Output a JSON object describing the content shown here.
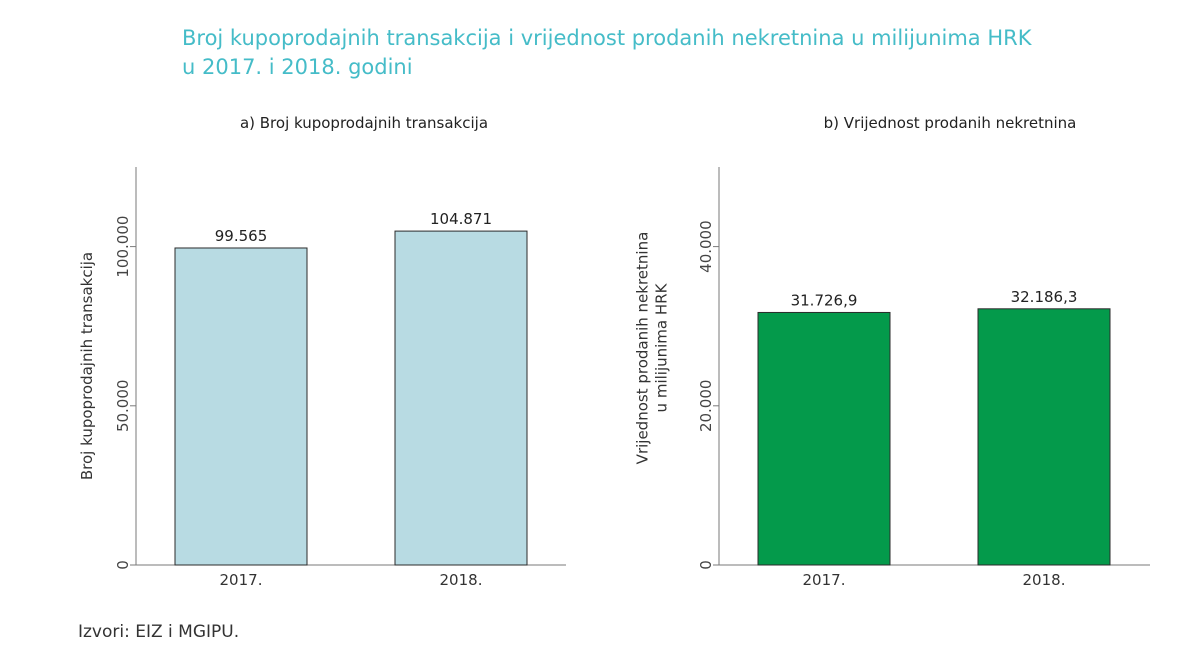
{
  "title_line1": "Broj kupoprodajnih transakcija i vrijednost prodanih nekretnina u milijunima HRK",
  "title_line2": "u 2017. i 2018. godini",
  "title_color": "#45bcc8",
  "source": "Izvori: EIZ i MGIPU.",
  "chart_data": [
    {
      "type": "bar",
      "title": "a) Broj kupoprodajnih transakcija",
      "categories": [
        "2017.",
        "2018."
      ],
      "values": [
        99565,
        104871
      ],
      "value_labels": [
        "99.565",
        "104.871"
      ],
      "ylabel": "Broj kupoprodajnih transakcija",
      "ylim": [
        0,
        125000
      ],
      "yticks": [
        0,
        50000,
        100000
      ],
      "ytick_labels": [
        "0",
        "50.000",
        "100.000"
      ],
      "bar_color": "#b8dbe3",
      "grid": false
    },
    {
      "type": "bar",
      "title": "b) Vrijednost prodanih nekretnina",
      "categories": [
        "2017.",
        "2018."
      ],
      "values": [
        31726.9,
        32186.3
      ],
      "value_labels": [
        "31.726,9",
        "32.186,3"
      ],
      "ylabel": "Vrijednost prodanih nekretnina u milijunima HRK",
      "ylabel_lines": [
        "Vrijednost prodanih nekretnina",
        "u milijunima HRK"
      ],
      "ylim": [
        0,
        50000
      ],
      "yticks": [
        0,
        20000,
        40000
      ],
      "ytick_labels": [
        "0",
        "20.000",
        "40.000"
      ],
      "bar_color": "#049a4b",
      "grid": false
    }
  ]
}
